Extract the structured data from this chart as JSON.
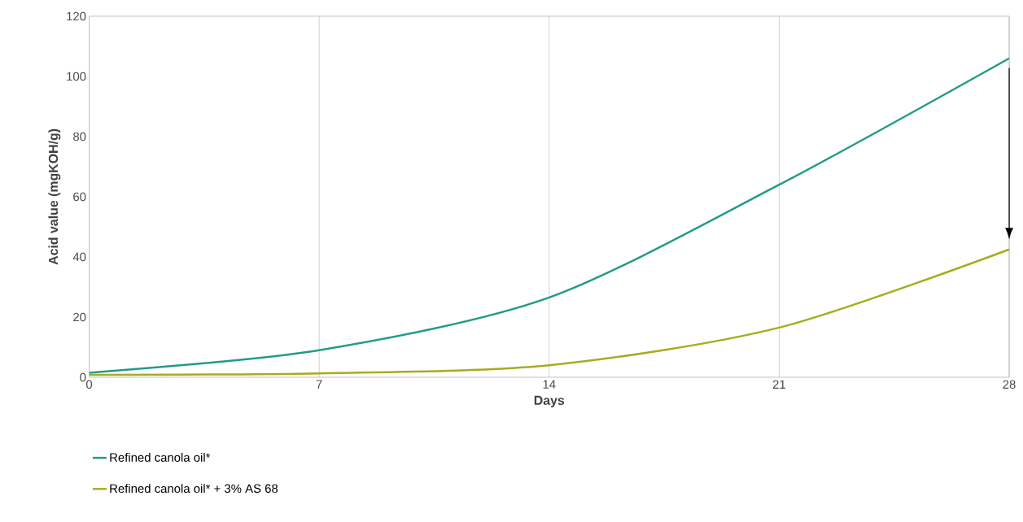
{
  "chart_data": {
    "type": "line",
    "xlabel": "Days",
    "ylabel": "Acid value (mgKOH/g)",
    "x": [
      0,
      7,
      14,
      21,
      28
    ],
    "series": [
      {
        "name": "Refined canola oil*",
        "color": "#239b87",
        "values": [
          1.5,
          9,
          26.5,
          64,
          106
        ]
      },
      {
        "name": "Refined canola oil* + 3% AS 68",
        "color": "#a5ad1e",
        "values": [
          0.8,
          1.3,
          4,
          16.5,
          42.5
        ]
      }
    ],
    "xlim": [
      0,
      28
    ],
    "xticks": [
      0,
      7,
      14,
      21,
      28
    ],
    "ylim": [
      0,
      120
    ],
    "yticks": [
      0,
      20,
      40,
      60,
      80,
      100,
      120
    ],
    "grid": "x",
    "legend": "bottom left",
    "marker": "none",
    "line_style": "solid"
  }
}
